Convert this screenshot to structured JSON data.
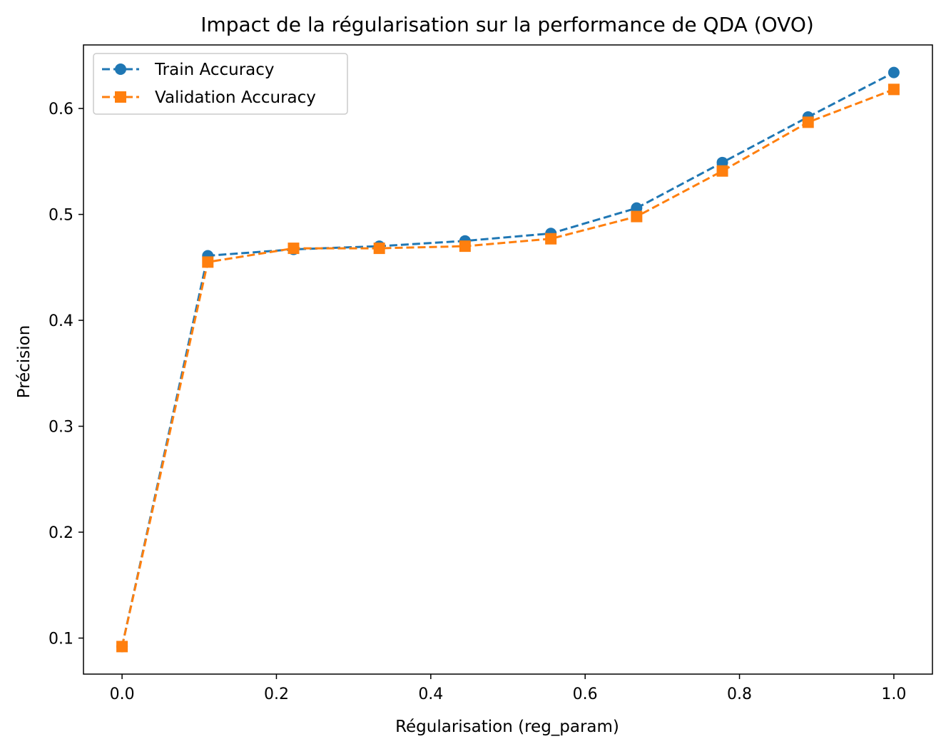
{
  "chart_data": {
    "type": "line",
    "title": "Impact de la régularisation sur la performance de QDA (OVO)",
    "xlabel": "Régularisation (reg_param)",
    "ylabel": "Précision",
    "xlim": [
      -0.05,
      1.05
    ],
    "ylim": [
      0.066,
      0.66
    ],
    "x_ticks": [
      0.0,
      0.2,
      0.4,
      0.6,
      0.8,
      1.0
    ],
    "x_tick_labels": [
      "0.0",
      "0.2",
      "0.4",
      "0.6",
      "0.8",
      "1.0"
    ],
    "y_ticks": [
      0.1,
      0.2,
      0.3,
      0.4,
      0.5,
      0.6
    ],
    "y_tick_labels": [
      "0.1",
      "0.2",
      "0.3",
      "0.4",
      "0.5",
      "0.6"
    ],
    "grid": false,
    "legend_position": "top-left",
    "x": [
      0.0,
      0.1111,
      0.2222,
      0.3333,
      0.4444,
      0.5556,
      0.6667,
      0.7778,
      0.8889,
      1.0
    ],
    "series": [
      {
        "name": "Train Accuracy",
        "color": "#1f77b4",
        "marker": "circle",
        "line_style": "dashed",
        "values": [
          0.092,
          0.461,
          0.467,
          0.47,
          0.475,
          0.482,
          0.506,
          0.549,
          0.592,
          0.634
        ]
      },
      {
        "name": "Validation Accuracy",
        "color": "#ff7f0e",
        "marker": "square",
        "line_style": "dashed",
        "values": [
          0.092,
          0.455,
          0.468,
          0.468,
          0.47,
          0.477,
          0.498,
          0.541,
          0.587,
          0.618
        ]
      }
    ]
  }
}
